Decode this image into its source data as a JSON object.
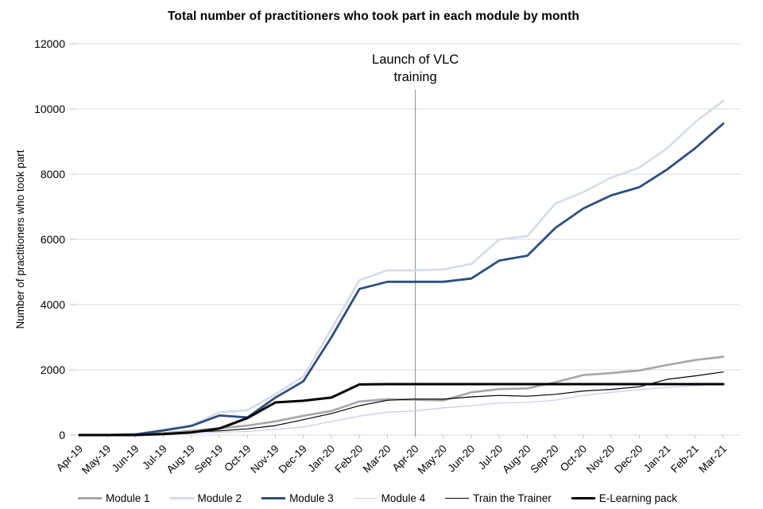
{
  "chart_data": {
    "type": "line",
    "title": "Total number of practitioners who took part in each module by month",
    "xlabel": "",
    "ylabel": "Number of practitioners who took part",
    "ylim": [
      0,
      12000
    ],
    "ytick_step": 2000,
    "grid": true,
    "legend_position": "bottom",
    "categories": [
      "Apr-19",
      "May-19",
      "Jun-19",
      "Jul-19",
      "Aug-19",
      "Sep-19",
      "Oct-19",
      "Nov-19",
      "Dec-19",
      "Jan-20",
      "Feb-20",
      "Mar-20",
      "Apr-20",
      "May-20",
      "Jun-20",
      "Jul-20",
      "Aug-20",
      "Sep-20",
      "Oct-20",
      "Nov-20",
      "Dec-20",
      "Jan-21",
      "Feb-21",
      "Mar-21"
    ],
    "series": [
      {
        "name": "Module 1",
        "color": "#A6A6A6",
        "width": 2.6,
        "values": [
          0,
          0,
          10,
          60,
          130,
          210,
          290,
          420,
          590,
          740,
          1030,
          1100,
          1080,
          1060,
          1310,
          1410,
          1430,
          1620,
          1840,
          1900,
          1980,
          2150,
          2300,
          2400
        ]
      },
      {
        "name": "Module 2",
        "color": "#D5DBE7",
        "width": 2.6,
        "values": [
          0,
          10,
          30,
          160,
          300,
          700,
          760,
          1250,
          1800,
          3250,
          4750,
          5050,
          5050,
          5080,
          5250,
          6000,
          6100,
          7100,
          7450,
          7900,
          8200,
          8800,
          9600,
          10250
        ]
      },
      {
        "name": "Module 3",
        "color": "#2E4E7E",
        "width": 2.8,
        "values": [
          0,
          0,
          20,
          140,
          280,
          600,
          540,
          1150,
          1650,
          3000,
          4480,
          4700,
          4700,
          4700,
          4800,
          5350,
          5500,
          6350,
          6950,
          7350,
          7600,
          8150,
          8800,
          9550
        ]
      },
      {
        "name": "Module 4",
        "color": "#C9D2E4",
        "width": 1.3,
        "values": [
          0,
          0,
          0,
          20,
          50,
          90,
          110,
          170,
          250,
          415,
          580,
          700,
          740,
          835,
          900,
          985,
          1000,
          1070,
          1215,
          1310,
          1390,
          1460,
          1510,
          1580
        ]
      },
      {
        "name": "Train the Trainer",
        "color": "#000000",
        "width": 1.2,
        "values": [
          0,
          0,
          0,
          20,
          90,
          130,
          190,
          290,
          470,
          660,
          900,
          1065,
          1105,
          1100,
          1170,
          1215,
          1190,
          1250,
          1350,
          1400,
          1480,
          1710,
          1815,
          1935
        ]
      },
      {
        "name": "E-Learning pack",
        "color": "#000000",
        "width": 3,
        "values": [
          0,
          0,
          0,
          30,
          80,
          200,
          520,
          1000,
          1050,
          1150,
          1550,
          1560,
          1560,
          1560,
          1560,
          1560,
          1560,
          1560,
          1560,
          1560,
          1560,
          1560,
          1560,
          1560
        ]
      }
    ],
    "annotation": {
      "text_lines": [
        "Launch of VLC",
        "training"
      ],
      "at_category": "Apr-20",
      "line_color": "#8C8C8C"
    },
    "grid_color": "#D9D9D9",
    "tick_color": "#BFBFBF"
  }
}
